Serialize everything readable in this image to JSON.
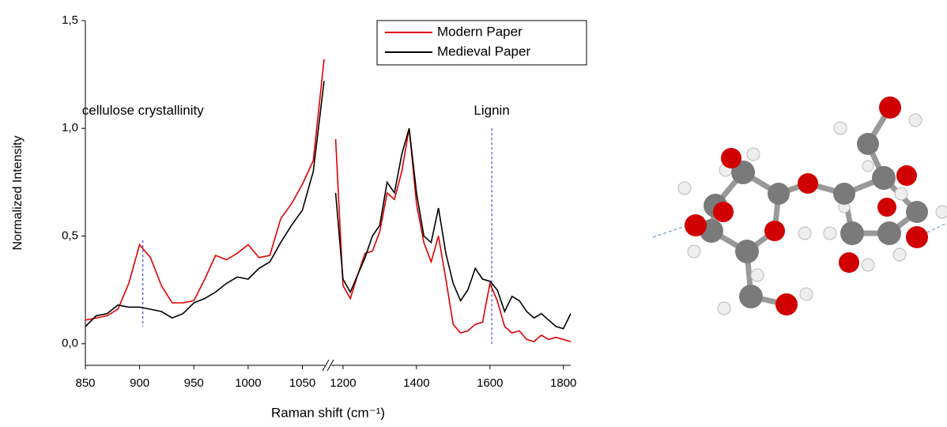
{
  "chart_data": {
    "type": "line",
    "xlabel": "Raman shift (cm⁻¹)",
    "ylabel": "Normalized Intensity",
    "xlim": [
      850,
      1820
    ],
    "x_break": [
      1070,
      1170
    ],
    "ylim": [
      -0.1,
      1.5
    ],
    "xticks": [
      850,
      900,
      950,
      1000,
      1050,
      1200,
      1400,
      1600,
      1800
    ],
    "yticks": [
      {
        "value": 0.0,
        "label": "0,0"
      },
      {
        "value": 0.5,
        "label": "0,5"
      },
      {
        "value": 1.0,
        "label": "1,0"
      },
      {
        "value": 1.5,
        "label": "1,5"
      }
    ],
    "legend": "upper right",
    "x": [
      850,
      860,
      870,
      880,
      890,
      900,
      910,
      920,
      930,
      940,
      950,
      960,
      970,
      980,
      990,
      1000,
      1010,
      1020,
      1030,
      1040,
      1050,
      1060,
      1070,
      1120,
      1180,
      1200,
      1220,
      1240,
      1260,
      1280,
      1300,
      1320,
      1340,
      1360,
      1380,
      1400,
      1420,
      1440,
      1460,
      1480,
      1500,
      1520,
      1540,
      1560,
      1580,
      1600,
      1620,
      1640,
      1660,
      1680,
      1700,
      1720,
      1740,
      1760,
      1780,
      1800,
      1820
    ],
    "series": [
      {
        "name": "Modern Paper",
        "color": "#e00000",
        "values": [
          0.11,
          0.12,
          0.13,
          0.16,
          0.28,
          0.46,
          0.4,
          0.27,
          0.19,
          0.19,
          0.2,
          0.3,
          0.41,
          0.39,
          0.42,
          0.46,
          0.4,
          0.41,
          0.58,
          0.65,
          0.74,
          0.85,
          1.32,
          null,
          0.95,
          0.27,
          0.21,
          0.32,
          0.42,
          0.43,
          0.52,
          0.7,
          0.67,
          0.8,
          1.0,
          0.65,
          0.47,
          0.38,
          0.5,
          0.3,
          0.09,
          0.05,
          0.06,
          0.09,
          0.1,
          0.28,
          0.2,
          0.08,
          0.05,
          0.06,
          0.02,
          0.01,
          0.04,
          0.02,
          0.03,
          0.02,
          0.01
        ]
      },
      {
        "name": "Medieval Paper",
        "color": "#000000",
        "values": [
          0.08,
          0.13,
          0.14,
          0.18,
          0.17,
          0.17,
          0.16,
          0.15,
          0.12,
          0.14,
          0.19,
          0.21,
          0.24,
          0.28,
          0.31,
          0.3,
          0.35,
          0.38,
          0.47,
          0.55,
          0.62,
          0.8,
          1.22,
          null,
          0.7,
          0.3,
          0.24,
          0.32,
          0.4,
          0.5,
          0.55,
          0.75,
          0.7,
          0.88,
          1.0,
          0.7,
          0.5,
          0.47,
          0.63,
          0.42,
          0.28,
          0.2,
          0.25,
          0.35,
          0.3,
          0.29,
          0.25,
          0.15,
          0.22,
          0.2,
          0.15,
          0.12,
          0.14,
          0.11,
          0.08,
          0.07,
          0.14
        ]
      }
    ],
    "annotations": [
      {
        "text": "cellulose crystallinity",
        "x": 903
      },
      {
        "text": "Lignin",
        "x": 1605
      }
    ]
  }
}
